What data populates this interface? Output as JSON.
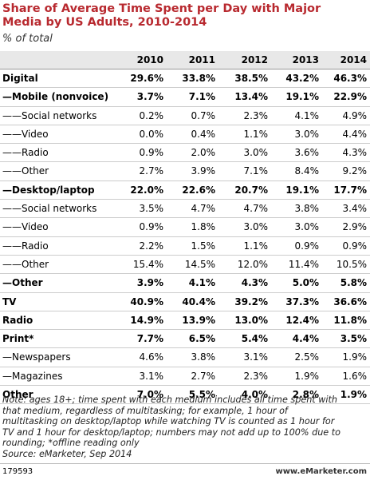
{
  "header": {
    "title": [
      "Share of Average Time Spent per Day with Major",
      "Media by US Adults, 2010-2014"
    ],
    "subtitle": "% of total"
  },
  "table": {
    "columns": [
      "2010",
      "2011",
      "2012",
      "2013",
      "2014"
    ],
    "rows": [
      {
        "label": "Digital",
        "bold": true,
        "cells": [
          "29.6%",
          "33.8%",
          "38.5%",
          "43.2%",
          "46.3%"
        ]
      },
      {
        "label": "—Mobile (nonvoice)",
        "bold": true,
        "cells": [
          "3.7%",
          "7.1%",
          "13.4%",
          "19.1%",
          "22.9%"
        ]
      },
      {
        "label": "——Social networks",
        "bold": false,
        "cells": [
          "0.2%",
          "0.7%",
          "2.3%",
          "4.1%",
          "4.9%"
        ]
      },
      {
        "label": "——Video",
        "bold": false,
        "cells": [
          "0.0%",
          "0.4%",
          "1.1%",
          "3.0%",
          "4.4%"
        ]
      },
      {
        "label": "——Radio",
        "bold": false,
        "cells": [
          "0.9%",
          "2.0%",
          "3.0%",
          "3.6%",
          "4.3%"
        ]
      },
      {
        "label": "——Other",
        "bold": false,
        "cells": [
          "2.7%",
          "3.9%",
          "7.1%",
          "8.4%",
          "9.2%"
        ]
      },
      {
        "label": "—Desktop/laptop",
        "bold": true,
        "cells": [
          "22.0%",
          "22.6%",
          "20.7%",
          "19.1%",
          "17.7%"
        ]
      },
      {
        "label": "——Social networks",
        "bold": false,
        "cells": [
          "3.5%",
          "4.7%",
          "4.7%",
          "3.8%",
          "3.4%"
        ]
      },
      {
        "label": "——Video",
        "bold": false,
        "cells": [
          "0.9%",
          "1.8%",
          "3.0%",
          "3.0%",
          "2.9%"
        ]
      },
      {
        "label": "——Radio",
        "bold": false,
        "cells": [
          "2.2%",
          "1.5%",
          "1.1%",
          "0.9%",
          "0.9%"
        ]
      },
      {
        "label": "——Other",
        "bold": false,
        "cells": [
          "15.4%",
          "14.5%",
          "12.0%",
          "11.4%",
          "10.5%"
        ]
      },
      {
        "label": "—Other",
        "bold": true,
        "cells": [
          "3.9%",
          "4.1%",
          "4.3%",
          "5.0%",
          "5.8%"
        ]
      },
      {
        "label": "TV",
        "bold": true,
        "cells": [
          "40.9%",
          "40.4%",
          "39.2%",
          "37.3%",
          "36.6%"
        ]
      },
      {
        "label": "Radio",
        "bold": true,
        "cells": [
          "14.9%",
          "13.9%",
          "13.0%",
          "12.4%",
          "11.8%"
        ]
      },
      {
        "label": "Print*",
        "bold": true,
        "cells": [
          "7.7%",
          "6.5%",
          "5.4%",
          "4.4%",
          "3.5%"
        ]
      },
      {
        "label": "—Newspapers",
        "bold": false,
        "cells": [
          "4.6%",
          "3.8%",
          "3.1%",
          "2.5%",
          "1.9%"
        ]
      },
      {
        "label": "—Magazines",
        "bold": false,
        "cells": [
          "3.1%",
          "2.7%",
          "2.3%",
          "1.9%",
          "1.6%"
        ]
      },
      {
        "label": "Other",
        "bold": true,
        "cells": [
          "7.0%",
          "5.5%",
          "4.0%",
          "2.8%",
          "1.9%"
        ]
      }
    ]
  },
  "note": [
    "Note: ages 18+; time spent with each medium includes all time spent with",
    "that medium, regardless of multitasking; for example, 1 hour of",
    "multitasking on desktop/laptop while watching TV is counted as 1 hour for",
    "TV and 1 hour for desktop/laptop; numbers may not add up to 100% due to",
    "rounding; *offline reading only",
    "Source: eMarketer, Sep 2014"
  ],
  "footer": {
    "id": "179593",
    "site": "www.eMarketer.com"
  }
}
